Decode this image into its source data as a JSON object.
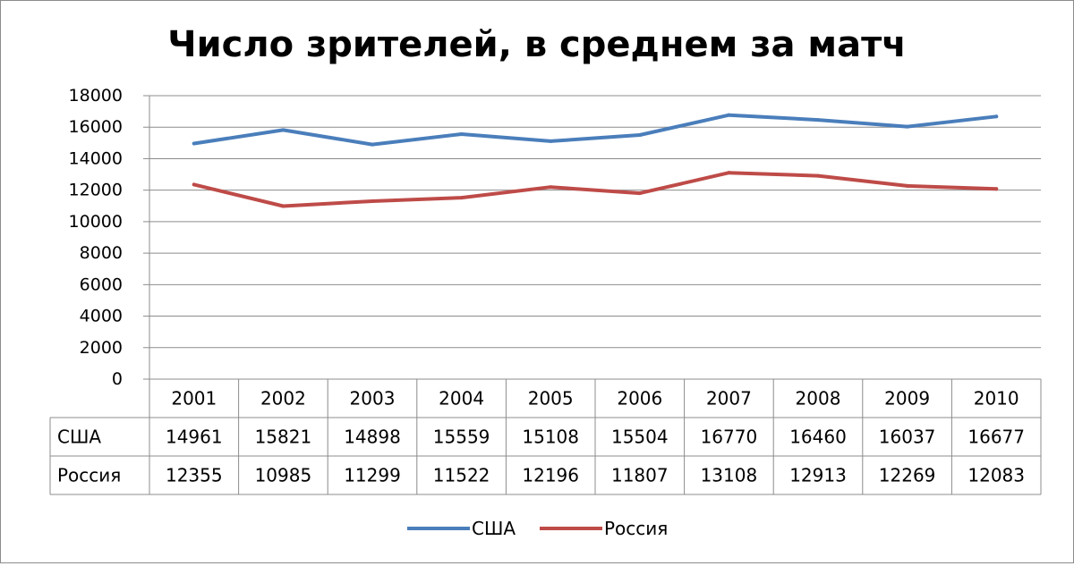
{
  "chart_data": {
    "type": "line",
    "title": "Число зрителей, в среднем за матч",
    "xlabel": "",
    "ylabel": "",
    "ylim": [
      0,
      18000
    ],
    "yticks": [
      0,
      2000,
      4000,
      6000,
      8000,
      10000,
      12000,
      14000,
      16000,
      18000
    ],
    "categories": [
      "2001",
      "2002",
      "2003",
      "2004",
      "2005",
      "2006",
      "2007",
      "2008",
      "2009",
      "2010"
    ],
    "grid": true,
    "legend_position": "bottom",
    "data_table": true,
    "series": [
      {
        "name": "США",
        "color": "#4a7ebb",
        "values": [
          14961,
          15821,
          14898,
          15559,
          15108,
          15504,
          16770,
          16460,
          16037,
          16677
        ]
      },
      {
        "name": "Россия",
        "color": "#be4b48",
        "values": [
          12355,
          10985,
          11299,
          11522,
          12196,
          11807,
          13108,
          12913,
          12269,
          12083
        ]
      }
    ]
  }
}
